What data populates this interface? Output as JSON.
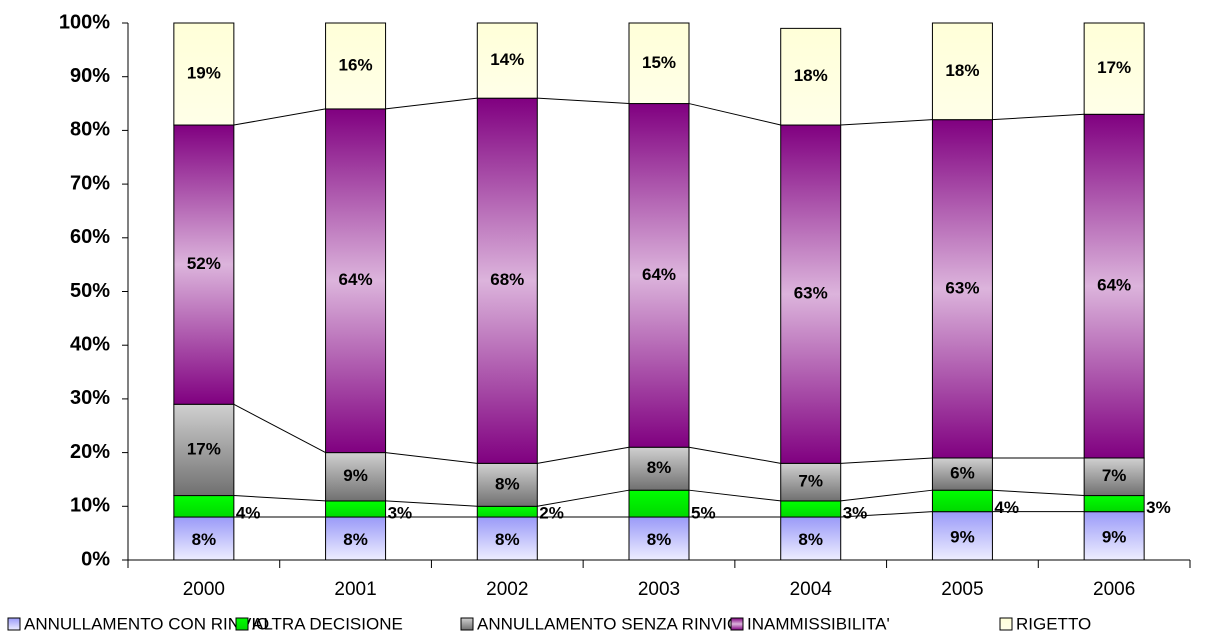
{
  "chart_data": {
    "type": "stacked_bar_100",
    "categories": [
      "2000",
      "2001",
      "2002",
      "2003",
      "2004",
      "2005",
      "2006"
    ],
    "series": [
      {
        "name": "ANNULLAMENTO CON RINVIO",
        "color": "#b4b4f8",
        "values": [
          8,
          8,
          8,
          8,
          8,
          9,
          9
        ],
        "value_labels": [
          "8%",
          "8%",
          "8%",
          "8%",
          "8%",
          "9%",
          "9%"
        ]
      },
      {
        "name": "ALTRA DECISIONE",
        "color": "#00ee00",
        "values": [
          4,
          3,
          2,
          5,
          3,
          4,
          3
        ],
        "value_labels": [
          "4%",
          "3%",
          "2%",
          "5%",
          "3%",
          "4%",
          "3%"
        ]
      },
      {
        "name": "ANNULLAMENTO SENZA RINVIO",
        "color": "#a0a0a0",
        "values": [
          17,
          9,
          8,
          8,
          7,
          6,
          7
        ],
        "value_labels": [
          "17%",
          "9%",
          "8%",
          "8%",
          "7%",
          "6%",
          "7%"
        ]
      },
      {
        "name": "INAMMISSIBILITA'",
        "color": "#c080c8",
        "values": [
          52,
          64,
          68,
          64,
          63,
          63,
          64
        ],
        "value_labels": [
          "52%",
          "64%",
          "68%",
          "64%",
          "63%",
          "63%",
          "64%"
        ]
      },
      {
        "name": "RIGETTO",
        "color": "#ffffe0",
        "values": [
          19,
          16,
          14,
          15,
          18,
          18,
          17
        ],
        "value_labels": [
          "19%",
          "16%",
          "14%",
          "15%",
          "18%",
          "18%",
          "17%"
        ]
      }
    ],
    "ylim": [
      0,
      100
    ],
    "yticks": [
      {
        "value": 0,
        "label": "0%"
      },
      {
        "value": 10,
        "label": "10%"
      },
      {
        "value": 20,
        "label": "20%"
      },
      {
        "value": 30,
        "label": "30%"
      },
      {
        "value": 40,
        "label": "40%"
      },
      {
        "value": 50,
        "label": "50%"
      },
      {
        "value": 60,
        "label": "60%"
      },
      {
        "value": 70,
        "label": "70%"
      },
      {
        "value": 80,
        "label": "80%"
      },
      {
        "value": 90,
        "label": "90%"
      },
      {
        "value": 100,
        "label": "100%"
      }
    ],
    "series_lines": true
  }
}
